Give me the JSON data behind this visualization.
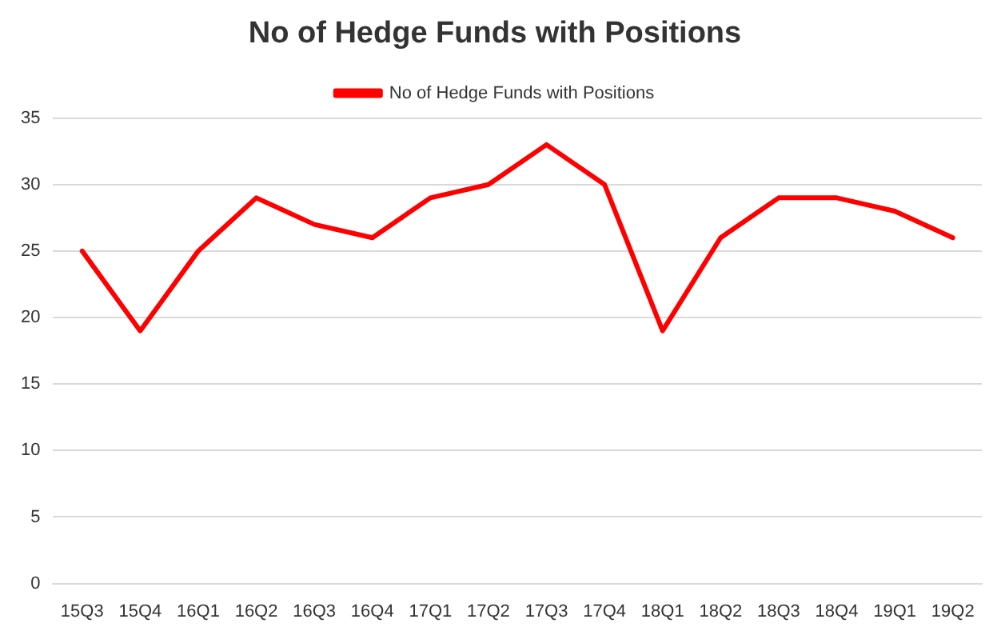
{
  "chart_data": {
    "type": "line",
    "title": "No of Hedge Funds with Positions",
    "categories": [
      "15Q3",
      "15Q4",
      "16Q1",
      "16Q2",
      "16Q3",
      "16Q4",
      "17Q1",
      "17Q2",
      "17Q3",
      "17Q4",
      "18Q1",
      "18Q2",
      "18Q3",
      "18Q4",
      "19Q1",
      "19Q2"
    ],
    "series": [
      {
        "name": "No of Hedge Funds with Positions",
        "color": "#ff0000",
        "values": [
          25,
          19,
          25,
          29,
          27,
          26,
          29,
          30,
          33,
          30,
          19,
          26,
          29,
          29,
          28,
          26
        ]
      }
    ],
    "ylim": [
      0,
      35
    ],
    "yticks": [
      0,
      5,
      10,
      15,
      20,
      25,
      30,
      35
    ],
    "grid": "y",
    "legend": "top",
    "marker": "none",
    "line_style": "solid"
  }
}
